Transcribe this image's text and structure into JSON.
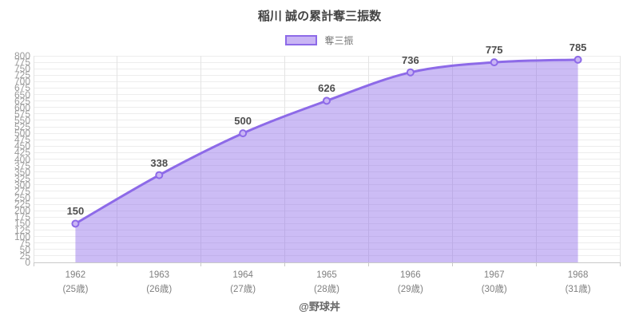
{
  "footer": {
    "text": "@野球丼"
  },
  "colors": {
    "line": "#8d6ae8",
    "area_fill": "rgba(141,106,232,0.45)",
    "marker_fill": "#c9b5f4",
    "hgrid": "#ededed",
    "vgrid": "#e4e4e4",
    "axis": "#c9c9c9",
    "ytick_label": "#999999",
    "xtick_label": "#808080",
    "data_label": "#4d4d4d",
    "title": "#444444"
  },
  "chart_data": {
    "type": "area",
    "title": "稲川 誠の累計奪三振数",
    "legend_position": "top",
    "categories": [
      "1962",
      "1963",
      "1964",
      "1965",
      "1966",
      "1967",
      "1968"
    ],
    "category_sublabels": [
      "(25歳)",
      "(26歳)",
      "(27歳)",
      "(28歳)",
      "(29歳)",
      "(30歳)",
      "(31歳)"
    ],
    "series": [
      {
        "name": "奪三振",
        "values": [
          150,
          338,
          500,
          626,
          736,
          775,
          785
        ]
      }
    ],
    "ylim": [
      0,
      800
    ],
    "yticks": [
      0,
      25,
      50,
      75,
      100,
      125,
      150,
      175,
      200,
      225,
      250,
      275,
      300,
      325,
      350,
      375,
      400,
      425,
      450,
      475,
      500,
      525,
      550,
      575,
      600,
      625,
      650,
      675,
      700,
      725,
      750,
      775,
      800
    ],
    "grid": true,
    "smooth": true
  }
}
